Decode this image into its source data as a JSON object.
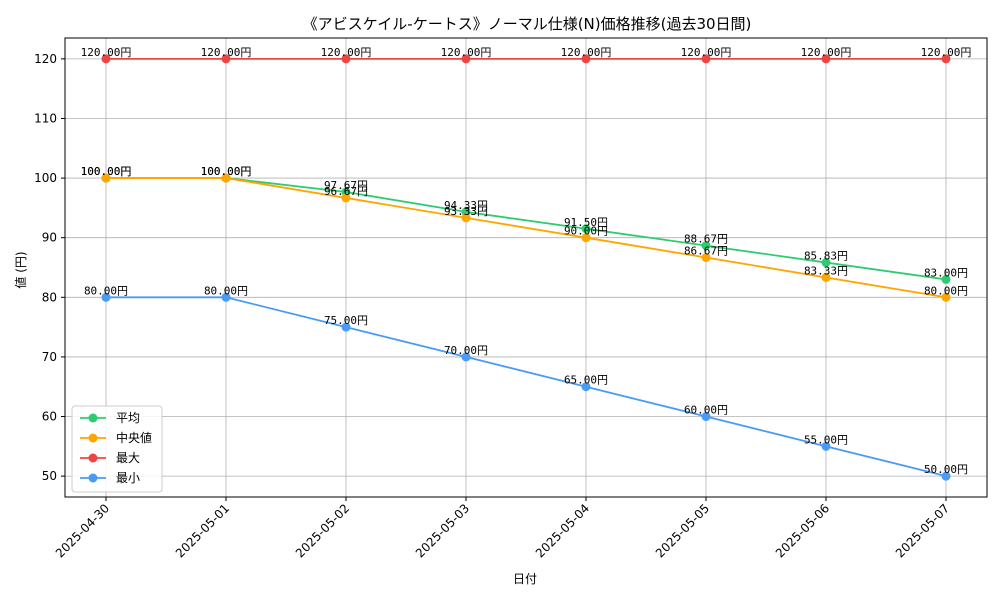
{
  "chart_data": {
    "type": "line",
    "title": "《アビスケイル-ケートス》ノーマル仕様(N)価格推移(過去30日間)",
    "xlabel": "日付",
    "ylabel": "値 (円)",
    "categories": [
      "2025-04-30",
      "2025-05-01",
      "2025-05-02",
      "2025-05-03",
      "2025-05-04",
      "2025-05-05",
      "2025-05-06",
      "2025-05-07"
    ],
    "ylim": [
      46.5,
      123.5
    ],
    "yticks": [
      50,
      60,
      70,
      80,
      90,
      100,
      110,
      120
    ],
    "grid": true,
    "legend_position": "lower-left",
    "label_suffix": "円",
    "series": [
      {
        "name": "平均",
        "color": "#2ecc71",
        "values": [
          100.0,
          100.0,
          97.67,
          94.33,
          91.5,
          88.67,
          85.83,
          83.0
        ]
      },
      {
        "name": "中央値",
        "color": "#ffa500",
        "values": [
          100.0,
          100.0,
          96.67,
          93.33,
          90.0,
          86.67,
          83.33,
          80.0
        ]
      },
      {
        "name": "最大",
        "color": "#ef4444",
        "values": [
          120.0,
          120.0,
          120.0,
          120.0,
          120.0,
          120.0,
          120.0,
          120.0
        ]
      },
      {
        "name": "最小",
        "color": "#4a9bf5",
        "values": [
          80.0,
          80.0,
          75.0,
          70.0,
          65.0,
          60.0,
          55.0,
          50.0
        ]
      }
    ]
  }
}
